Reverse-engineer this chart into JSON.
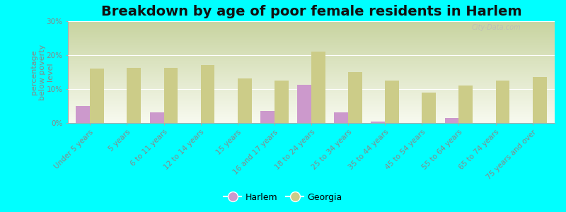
{
  "title": "Breakdown by age of poor female residents in Harlem",
  "ylabel": "percentage\nbelow poverty\nlevel",
  "categories": [
    "Under 5 years",
    "5 years",
    "6 to 11 years",
    "12 to 14 years",
    "15 years",
    "16 and 17 years",
    "18 to 24 years",
    "25 to 34 years",
    "35 to 44 years",
    "45 to 54 years",
    "55 to 64 years",
    "65 to 74 years",
    "75 years and over"
  ],
  "harlem_values": [
    5.0,
    0.0,
    3.2,
    0.0,
    0.0,
    3.5,
    11.2,
    3.2,
    0.5,
    0.0,
    1.5,
    0.0,
    0.0
  ],
  "georgia_values": [
    16.0,
    16.2,
    16.2,
    17.0,
    13.2,
    12.5,
    21.0,
    15.0,
    12.5,
    9.0,
    11.0,
    12.5,
    13.5
  ],
  "harlem_color": "#cc99cc",
  "georgia_color": "#cccc88",
  "background_color": "#00ffff",
  "plot_bg_top": "#c8d4a0",
  "plot_bg_bottom": "#f8faf0",
  "ylim": [
    0,
    30
  ],
  "yticks": [
    0,
    10,
    20,
    30
  ],
  "ytick_labels": [
    "0%",
    "10%",
    "20%",
    "30%"
  ],
  "title_fontsize": 14,
  "axis_label_fontsize": 8,
  "tick_label_fontsize": 7.5,
  "ylabel_color": "#888888",
  "tick_color": "#888888",
  "watermark": "City-Data.com"
}
